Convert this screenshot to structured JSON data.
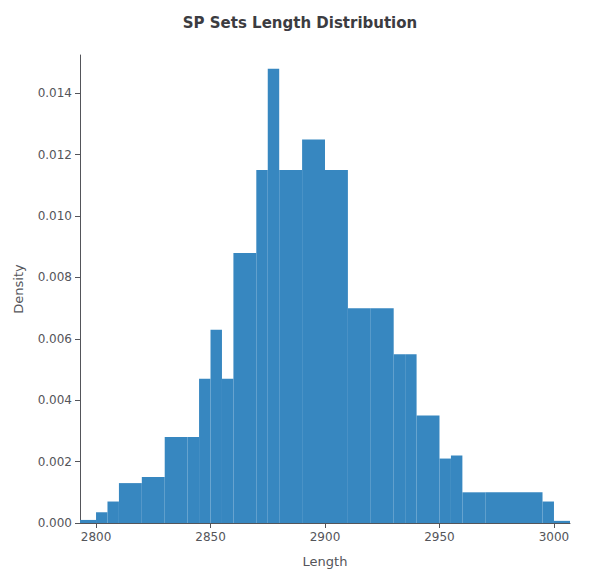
{
  "chart_data": {
    "type": "histogram",
    "title": "SP Sets Length Distribution",
    "xlabel": "Length",
    "ylabel": "Density",
    "color": "#3787c0",
    "bins": [
      2793,
      2800,
      2805,
      2810,
      2820,
      2830,
      2840,
      2845,
      2850,
      2855,
      2860,
      2870,
      2875,
      2880,
      2890,
      2900,
      2910,
      2920,
      2930,
      2935,
      2940,
      2950,
      2955,
      2960,
      2970,
      2995,
      3000,
      3007
    ],
    "values": [
      0.0001,
      0.00035,
      0.0007,
      0.0013,
      0.0015,
      0.0028,
      0.0028,
      0.0047,
      0.0063,
      0.0047,
      0.0088,
      0.0115,
      0.0148,
      0.0115,
      0.0125,
      0.0115,
      0.007,
      0.007,
      0.0055,
      0.0055,
      0.0035,
      0.0021,
      0.0022,
      0.001,
      0.001,
      0.0007,
      7e-05
    ],
    "xlim": [
      2793,
      3007
    ],
    "ylim": [
      0,
      0.01525
    ],
    "xticks": [
      2800,
      2850,
      2900,
      2950,
      3000
    ],
    "yticks": [
      {
        "value": 0,
        "label": "0.000"
      },
      {
        "value": 0.002,
        "label": "0.002"
      },
      {
        "value": 0.004,
        "label": "0.004"
      },
      {
        "value": 0.006,
        "label": "0.006"
      },
      {
        "value": 0.008,
        "label": "0.008"
      },
      {
        "value": 0.01,
        "label": "0.010"
      },
      {
        "value": 0.012,
        "label": "0.012"
      },
      {
        "value": 0.014,
        "label": "0.014"
      }
    ],
    "grid": false
  }
}
